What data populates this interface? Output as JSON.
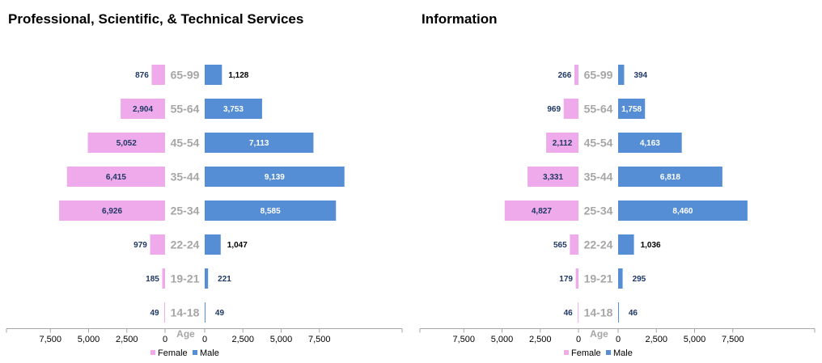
{
  "colors": {
    "female": "#eeaaea",
    "male": "#558ed5",
    "label_inside": "#1f3864",
    "label_outside": "#000000",
    "axis": "#a6a6a6"
  },
  "legend": {
    "female": "Female",
    "male": "Male"
  },
  "age_header": "Age",
  "chart_data": [
    {
      "type": "bar",
      "title": "Professional, Scientific, & Technical Services",
      "categories": [
        "65-99",
        "55-64",
        "45-54",
        "35-44",
        "25-34",
        "22-24",
        "19-21",
        "14-18"
      ],
      "series": [
        {
          "name": "Female",
          "values": [
            876,
            2904,
            5052,
            6415,
            6926,
            979,
            185,
            49
          ]
        },
        {
          "name": "Male",
          "values": [
            1128,
            3753,
            7113,
            9139,
            8585,
            1047,
            221,
            49
          ]
        }
      ],
      "value_labels": {
        "Female": [
          "876",
          "2,904",
          "5,052",
          "6,415",
          "6,926",
          "979",
          "185",
          "49"
        ],
        "Male": [
          "1,128",
          "3,753",
          "7,113",
          "9,139",
          "8,585",
          "1,047",
          "221",
          "49"
        ]
      },
      "female_ticks": [
        "7,500",
        "5,000",
        "2,500",
        "0"
      ],
      "male_ticks": [
        "0",
        "2,500",
        "5,000",
        "7,500"
      ],
      "xlabel": "Age",
      "legend_position": "bottom"
    },
    {
      "type": "bar",
      "title": "Information",
      "categories": [
        "65-99",
        "55-64",
        "45-54",
        "35-44",
        "25-34",
        "22-24",
        "19-21",
        "14-18"
      ],
      "series": [
        {
          "name": "Female",
          "values": [
            266,
            969,
            2112,
            3331,
            4827,
            565,
            179,
            46
          ]
        },
        {
          "name": "Male",
          "values": [
            394,
            1758,
            4163,
            6818,
            8460,
            1036,
            295,
            46
          ]
        }
      ],
      "value_labels": {
        "Female": [
          "266",
          "969",
          "2,112",
          "3,331",
          "4,827",
          "565",
          "179",
          "46"
        ],
        "Male": [
          "394",
          "1,758",
          "4,163",
          "6,818",
          "8,460",
          "1,036",
          "295",
          "46"
        ]
      },
      "female_ticks": [
        "7,500",
        "5,000",
        "2,500",
        "0"
      ],
      "male_ticks": [
        "0",
        "2,500",
        "5,000",
        "7,500"
      ],
      "xlabel": "Age",
      "legend_position": "bottom"
    }
  ]
}
